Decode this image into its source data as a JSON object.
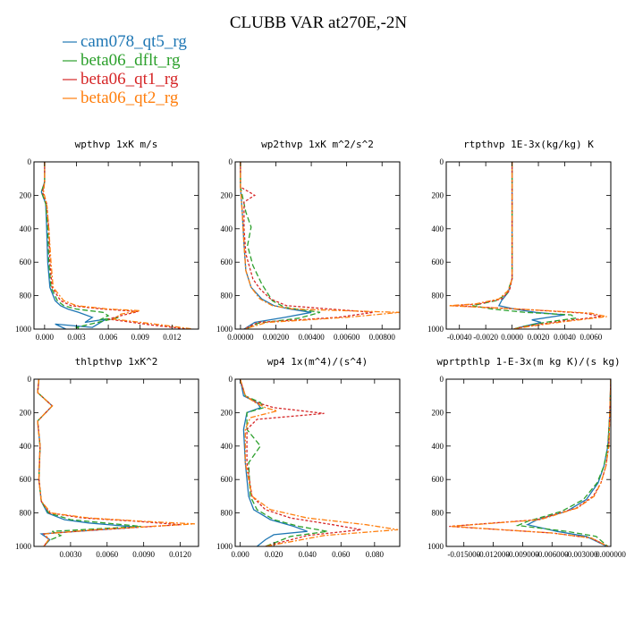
{
  "title": "CLUBB VAR at270E,-2N",
  "legend": [
    {
      "label": "cam078_qt5_rg",
      "color": "#1f77b4"
    },
    {
      "label": "beta06_dflt_rg",
      "color": "#2ca02c"
    },
    {
      "label": "beta06_qt1_rg",
      "color": "#d62728"
    },
    {
      "label": "beta06_qt2_rg",
      "color": "#ff7f0e"
    }
  ],
  "chart_data": [
    {
      "type": "line",
      "title": "wpthvp  1xK m/s",
      "xlim": [
        -0.001,
        0.0145
      ],
      "ylim": [
        0,
        1000
      ],
      "xticks": [
        {
          "v": 0.0,
          "label": "0.000"
        },
        {
          "v": 0.003,
          "label": "0.003"
        },
        {
          "v": 0.006,
          "label": "0.006"
        },
        {
          "v": 0.009,
          "label": "0.009"
        },
        {
          "v": 0.012,
          "label": "0.012"
        }
      ],
      "yticks": [
        0,
        200,
        400,
        600,
        800,
        1000
      ],
      "series": [
        {
          "color": "#1f77b4",
          "dash": "",
          "x": [
            0,
            0,
            -0.0003,
            0.0001,
            0.0002,
            0.0003,
            0.0005,
            0.001,
            0.0015,
            0.0022,
            0.0032,
            0.0045,
            0.0038,
            0.0058,
            0.0045,
            0.001,
            0.002
          ],
          "y": [
            0,
            120,
            180,
            250,
            400,
            600,
            750,
            830,
            860,
            880,
            900,
            930,
            960,
            940,
            990,
            970,
            1000
          ]
        },
        {
          "color": "#2ca02c",
          "dash": "6,3",
          "x": [
            0,
            0,
            -0.0003,
            0.0001,
            0.0003,
            0.0004,
            0.0006,
            0.0012,
            0.0018,
            0.003,
            0.0055,
            0.006,
            0.0052,
            0.007,
            0.003,
            0.0035
          ],
          "y": [
            0,
            120,
            180,
            250,
            400,
            600,
            750,
            830,
            860,
            880,
            900,
            920,
            945,
            930,
            990,
            1000
          ]
        },
        {
          "color": "#d62728",
          "dash": "3,2",
          "x": [
            0,
            0,
            -0.0002,
            0.0002,
            0.0004,
            0.0005,
            0.0007,
            0.0015,
            0.0025,
            0.0055,
            0.0088,
            0.0075,
            0.006,
            0.01,
            0.0135
          ],
          "y": [
            0,
            120,
            180,
            250,
            400,
            600,
            750,
            830,
            860,
            880,
            895,
            915,
            940,
            975,
            1000
          ]
        },
        {
          "color": "#ff7f0e",
          "dash": "6,2,2,2",
          "x": [
            0,
            0,
            -0.0001,
            0.0002,
            0.0004,
            0.0006,
            0.0008,
            0.0018,
            0.003,
            0.006,
            0.009,
            0.0072,
            0.0065,
            0.011,
            0.014
          ],
          "y": [
            0,
            120,
            180,
            250,
            400,
            600,
            750,
            830,
            860,
            880,
            890,
            910,
            940,
            975,
            1000
          ]
        }
      ]
    },
    {
      "type": "line",
      "title": "wp2thvp  1xK m^2/s^2",
      "xlim": [
        -0.0003,
        0.009
      ],
      "ylim": [
        0,
        1000
      ],
      "xticks": [
        {
          "v": 0.0,
          "label": "0.00000"
        },
        {
          "v": 0.002,
          "label": "0.00200"
        },
        {
          "v": 0.004,
          "label": "0.00400"
        },
        {
          "v": 0.006,
          "label": "0.00600"
        },
        {
          "v": 0.008,
          "label": "0.00800"
        }
      ],
      "yticks": [
        0,
        200,
        400,
        600,
        800,
        1000
      ],
      "series": [
        {
          "color": "#1f77b4",
          "dash": "",
          "x": [
            0,
            0,
            0.0001,
            0.0002,
            0.0003,
            0.0006,
            0.0012,
            0.0019,
            0.0028,
            0.004,
            0.0025,
            0.0008,
            0.0002
          ],
          "y": [
            0,
            150,
            300,
            500,
            650,
            750,
            820,
            860,
            880,
            900,
            930,
            960,
            1000
          ]
        },
        {
          "color": "#2ca02c",
          "dash": "6,3",
          "x": [
            0,
            0,
            0.0003,
            0.0006,
            0.0004,
            0.0007,
            0.0012,
            0.0018,
            0.0025,
            0.0045,
            0.0033,
            0.001,
            0.0003
          ],
          "y": [
            0,
            150,
            300,
            390,
            500,
            620,
            730,
            830,
            870,
            900,
            935,
            965,
            1000
          ]
        },
        {
          "color": "#d62728",
          "dash": "3,2",
          "x": [
            0,
            0,
            0.0008,
            0.0002,
            0.0002,
            0.0003,
            0.0007,
            0.0011,
            0.0017,
            0.0026,
            0.0075,
            0.0055,
            0.001,
            0.0002
          ],
          "y": [
            0,
            150,
            200,
            240,
            400,
            550,
            700,
            760,
            820,
            860,
            900,
            930,
            960,
            1000
          ]
        },
        {
          "color": "#ff7f0e",
          "dash": "6,2,2,2",
          "x": [
            0,
            0,
            0.0001,
            0.0002,
            0.0003,
            0.0006,
            0.0011,
            0.0018,
            0.003,
            0.009,
            0.006,
            0.0015,
            0.0002
          ],
          "y": [
            0,
            150,
            300,
            500,
            650,
            750,
            820,
            860,
            880,
            900,
            930,
            960,
            1000
          ]
        }
      ]
    },
    {
      "type": "line",
      "title": "rtpthvp  1E-3x(kg/kg) K",
      "xlim": [
        -0.005,
        0.0075
      ],
      "ylim": [
        0,
        1000
      ],
      "xticks": [
        {
          "v": -0.004,
          "label": "-0.0040"
        },
        {
          "v": -0.002,
          "label": "-0.0020"
        },
        {
          "v": 0.0,
          "label": "0.0000"
        },
        {
          "v": 0.002,
          "label": "0.0020"
        },
        {
          "v": 0.004,
          "label": "0.0040"
        },
        {
          "v": 0.006,
          "label": "0.0060"
        }
      ],
      "yticks": [
        0,
        200,
        400,
        600,
        800,
        1000
      ],
      "series": [
        {
          "color": "#1f77b4",
          "dash": "",
          "x": [
            0,
            0,
            0,
            -0.0003,
            -0.0008,
            -0.001,
            0.0002,
            0.0018,
            0.004,
            0.0015,
            0.0022,
            0.0008,
            0.0001
          ],
          "y": [
            0,
            400,
            700,
            780,
            830,
            860,
            880,
            900,
            915,
            945,
            960,
            985,
            1000
          ]
        },
        {
          "color": "#2ca02c",
          "dash": "6,3",
          "x": [
            0,
            0,
            0,
            -0.0004,
            -0.0012,
            -0.003,
            -0.0015,
            0.001,
            0.0045,
            0.0048,
            0.0025,
            0.0008,
            0.0001
          ],
          "y": [
            0,
            400,
            700,
            790,
            830,
            860,
            880,
            900,
            915,
            935,
            960,
            985,
            1000
          ]
        },
        {
          "color": "#d62728",
          "dash": "3,2",
          "x": [
            0,
            0,
            0,
            -0.0002,
            -0.0008,
            -0.0025,
            -0.0045,
            0.0005,
            0.0055,
            0.0068,
            0.0035,
            0.001,
            0.0001
          ],
          "y": [
            0,
            400,
            700,
            770,
            820,
            850,
            860,
            880,
            905,
            925,
            955,
            985,
            1000
          ]
        },
        {
          "color": "#ff7f0e",
          "dash": "6,2,2,2",
          "x": [
            0,
            0,
            0,
            -0.0003,
            -0.001,
            -0.0028,
            -0.0048,
            0.0005,
            0.006,
            0.0072,
            0.004,
            0.0012,
            0.0001
          ],
          "y": [
            0,
            400,
            700,
            770,
            820,
            850,
            860,
            880,
            905,
            925,
            955,
            985,
            1000
          ]
        }
      ]
    },
    {
      "type": "line",
      "title": "thlpthvp  1xK^2",
      "xlim": [
        0,
        0.0135
      ],
      "ylim": [
        0,
        1000
      ],
      "xticks": [
        {
          "v": 0.003,
          "label": "0.0030"
        },
        {
          "v": 0.006,
          "label": "0.0060"
        },
        {
          "v": 0.009,
          "label": "0.0090"
        },
        {
          "v": 0.012,
          "label": "0.0120"
        }
      ],
      "yticks": [
        0,
        200,
        400,
        600,
        800,
        1000
      ],
      "series": [
        {
          "color": "#1f77b4",
          "dash": "",
          "x": [
            0.0004,
            0.0003,
            0.0015,
            0.0003,
            0.0005,
            0.0004,
            0.0006,
            0.0011,
            0.0025,
            0.0045,
            0.0085,
            0.0035,
            0.0006,
            0.0013,
            0.0008
          ],
          "y": [
            0,
            80,
            160,
            250,
            400,
            600,
            730,
            800,
            840,
            860,
            885,
            910,
            925,
            960,
            1000
          ]
        },
        {
          "color": "#2ca02c",
          "dash": "6,3",
          "x": [
            0.0004,
            0.0003,
            0.0015,
            0.0003,
            0.0005,
            0.0004,
            0.0006,
            0.0012,
            0.003,
            0.0058,
            0.0088,
            0.0015,
            0.0022,
            0.0012,
            0.0008
          ],
          "y": [
            0,
            80,
            160,
            250,
            400,
            600,
            730,
            800,
            840,
            860,
            880,
            910,
            935,
            965,
            1000
          ]
        },
        {
          "color": "#d62728",
          "dash": "3,2",
          "x": [
            0.0004,
            0.0003,
            0.0015,
            0.0003,
            0.0005,
            0.0004,
            0.0006,
            0.0013,
            0.004,
            0.0085,
            0.012,
            0.0045,
            0.0008,
            0.0012,
            0.0008
          ],
          "y": [
            0,
            80,
            160,
            250,
            400,
            600,
            730,
            800,
            830,
            850,
            870,
            905,
            925,
            960,
            1000
          ]
        },
        {
          "color": "#ff7f0e",
          "dash": "6,2,2,2",
          "x": [
            0.0004,
            0.0003,
            0.0015,
            0.0003,
            0.0005,
            0.0004,
            0.0006,
            0.0014,
            0.0045,
            0.009,
            0.0132,
            0.005,
            0.0009,
            0.0012,
            0.0008
          ],
          "y": [
            0,
            80,
            160,
            250,
            400,
            600,
            730,
            800,
            830,
            850,
            865,
            900,
            925,
            960,
            1000
          ]
        }
      ]
    },
    {
      "type": "line",
      "title": "wp4  1x(m^4)/(s^4)",
      "xlim": [
        -0.003,
        0.095
      ],
      "ylim": [
        0,
        1000
      ],
      "xticks": [
        {
          "v": 0.0,
          "label": "0.000"
        },
        {
          "v": 0.02,
          "label": "0.020"
        },
        {
          "v": 0.04,
          "label": "0.040"
        },
        {
          "v": 0.06,
          "label": "0.060"
        },
        {
          "v": 0.08,
          "label": "0.080"
        }
      ],
      "yticks": [
        0,
        200,
        400,
        600,
        800,
        1000
      ],
      "series": [
        {
          "color": "#1f77b4",
          "dash": "",
          "x": [
            0,
            0.002,
            0.01,
            0.012,
            0.004,
            0.002,
            0.003,
            0.005,
            0.008,
            0.018,
            0.032,
            0.04,
            0.02,
            0.015,
            0.01
          ],
          "y": [
            0,
            100,
            140,
            170,
            200,
            300,
            500,
            700,
            780,
            840,
            880,
            910,
            930,
            960,
            1000
          ]
        },
        {
          "color": "#2ca02c",
          "dash": "6,3",
          "x": [
            0,
            0.003,
            0.012,
            0.014,
            0.004,
            0.004,
            0.012,
            0.005,
            0.006,
            0.01,
            0.02,
            0.035,
            0.052,
            0.03,
            0.015
          ],
          "y": [
            0,
            100,
            140,
            170,
            200,
            300,
            400,
            500,
            700,
            780,
            840,
            880,
            910,
            940,
            1000
          ]
        },
        {
          "color": "#d62728",
          "dash": "3,2",
          "x": [
            0,
            0.003,
            0.01,
            0.02,
            0.05,
            0.01,
            0.004,
            0.004,
            0.007,
            0.015,
            0.03,
            0.055,
            0.072,
            0.04,
            0.015
          ],
          "y": [
            0,
            100,
            140,
            170,
            205,
            240,
            300,
            500,
            700,
            780,
            830,
            870,
            900,
            935,
            1000
          ]
        },
        {
          "color": "#ff7f0e",
          "dash": "6,2,2,2",
          "x": [
            0,
            0.003,
            0.009,
            0.015,
            0.022,
            0.006,
            0.003,
            0.003,
            0.007,
            0.018,
            0.04,
            0.075,
            0.094,
            0.05,
            0.015
          ],
          "y": [
            0,
            100,
            140,
            170,
            190,
            230,
            300,
            500,
            700,
            780,
            830,
            870,
            900,
            935,
            1000
          ]
        }
      ]
    },
    {
      "type": "line",
      "title": "wprtpthlp  1-E-3x(m kg K)/(s kg)",
      "xlim": [
        -0.0168,
        0.0
      ],
      "ylim": [
        0,
        1000
      ],
      "xticks": [
        {
          "v": -0.015,
          "label": "-0.015000"
        },
        {
          "v": -0.012,
          "label": "-0.012000"
        },
        {
          "v": -0.009,
          "label": "-0.009000"
        },
        {
          "v": -0.006,
          "label": "-0.006000"
        },
        {
          "v": -0.003,
          "label": "-0.003000"
        },
        {
          "v": 0.0,
          "label": "0.000000"
        }
      ],
      "yticks": [
        0,
        200,
        400,
        600,
        800,
        1000
      ],
      "series": [
        {
          "color": "#1f77b4",
          "dash": "",
          "x": [
            0,
            -0.0001,
            -0.0003,
            -0.0007,
            -0.0013,
            -0.0025,
            -0.0045,
            -0.0075,
            -0.0085,
            -0.0055,
            -0.0025,
            -0.0004
          ],
          "y": [
            0,
            200,
            400,
            520,
            620,
            720,
            790,
            840,
            870,
            910,
            940,
            1000
          ]
        },
        {
          "color": "#2ca02c",
          "dash": "6,3",
          "x": [
            0,
            -0.0001,
            -0.0003,
            -0.0007,
            -0.0014,
            -0.0028,
            -0.005,
            -0.0085,
            -0.0095,
            -0.0045,
            -0.0015,
            -0.0003
          ],
          "y": [
            0,
            200,
            400,
            520,
            620,
            720,
            790,
            850,
            875,
            910,
            940,
            1000
          ]
        },
        {
          "color": "#d62728",
          "dash": "3,2",
          "x": [
            0,
            -0.0001,
            -0.0002,
            -0.0005,
            -0.001,
            -0.0018,
            -0.0035,
            -0.0075,
            -0.0165,
            -0.006,
            -0.002,
            -0.0003
          ],
          "y": [
            0,
            200,
            400,
            520,
            620,
            700,
            770,
            840,
            880,
            920,
            950,
            1000
          ]
        },
        {
          "color": "#ff7f0e",
          "dash": "6,2,2,2",
          "x": [
            0,
            -0.0001,
            -0.0002,
            -0.0005,
            -0.001,
            -0.0017,
            -0.0034,
            -0.0072,
            -0.0163,
            -0.006,
            -0.002,
            -0.0003
          ],
          "y": [
            0,
            200,
            400,
            520,
            620,
            700,
            770,
            840,
            880,
            920,
            950,
            1000
          ]
        }
      ]
    }
  ]
}
